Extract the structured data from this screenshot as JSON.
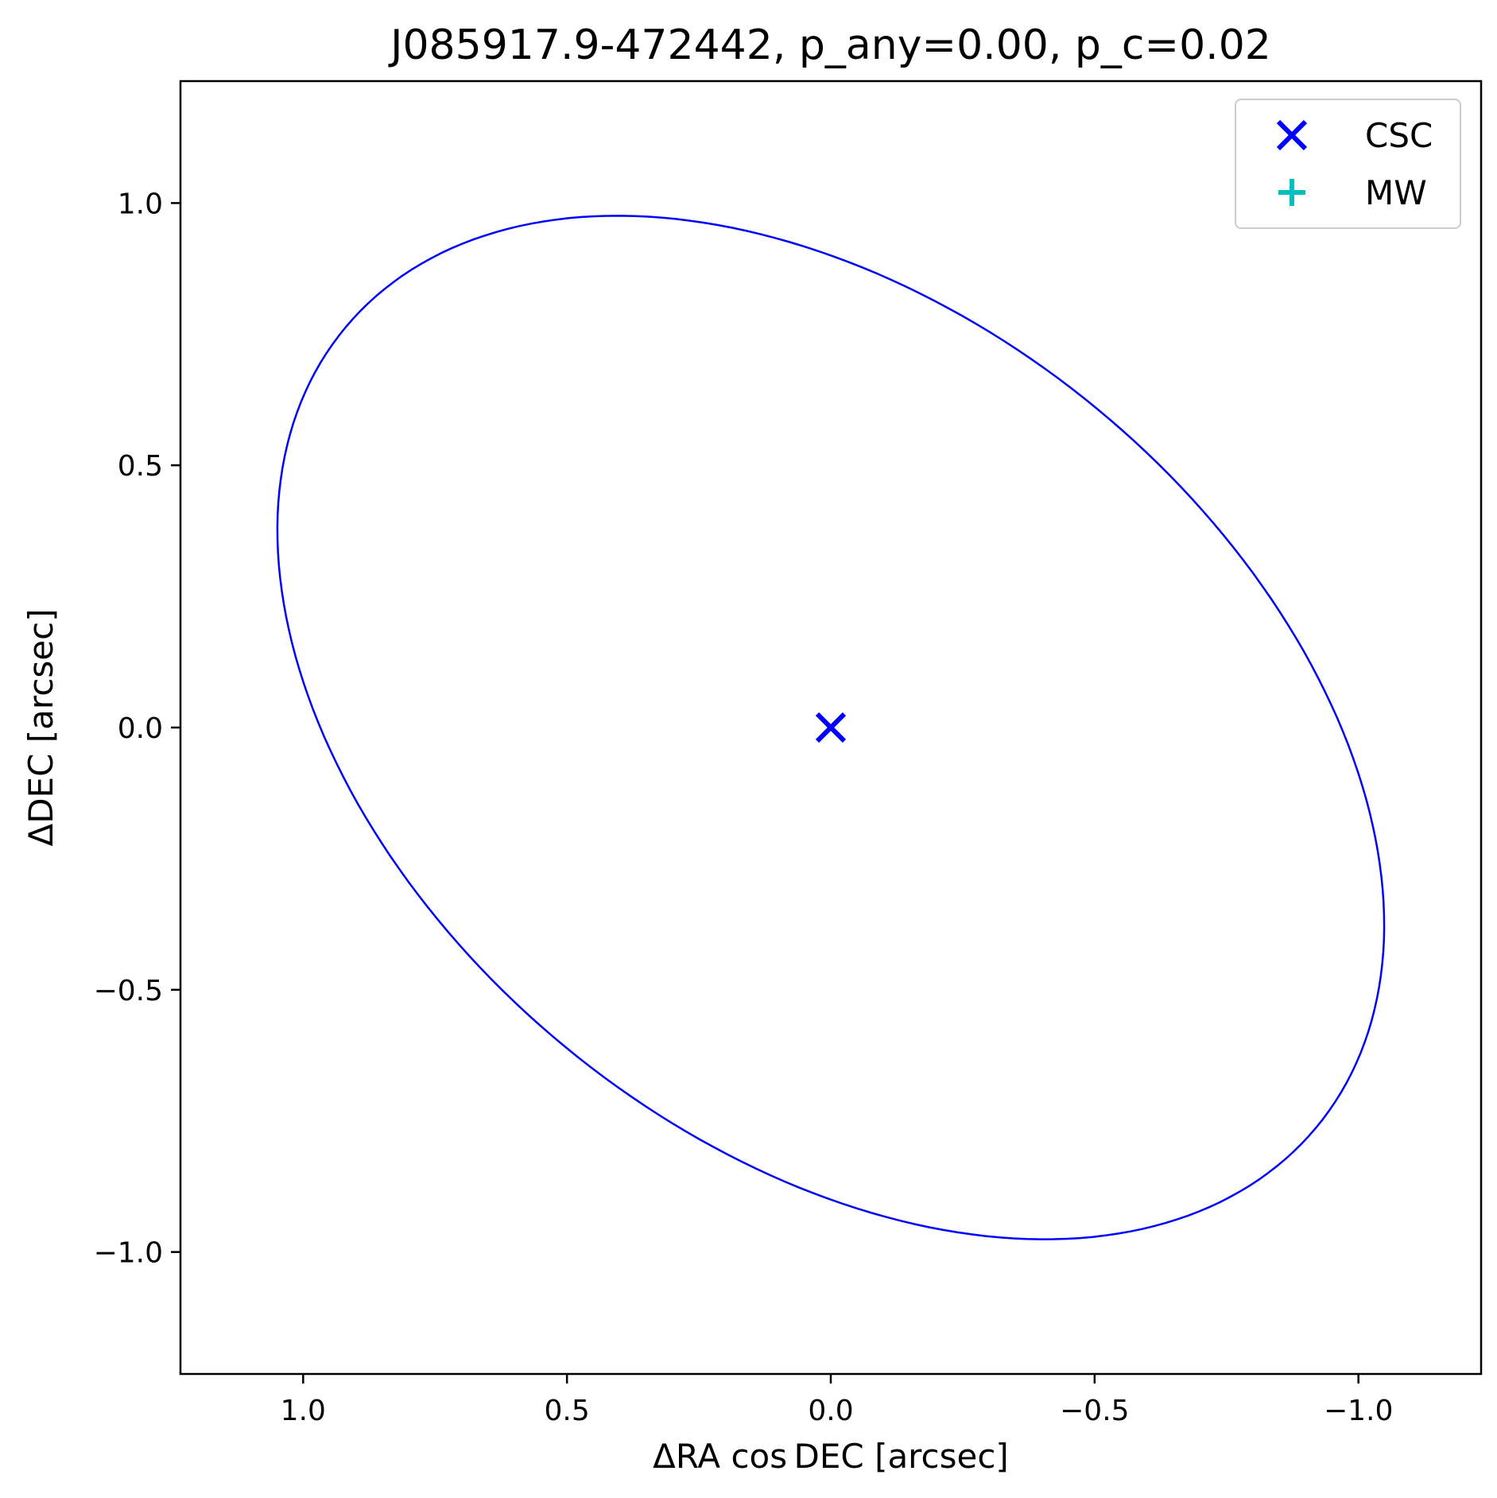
{
  "chart_data": {
    "type": "scatter",
    "title": "J085917.9-472442, p_any=0.00, p_c=0.02",
    "xlabel": "ΔRA cos DEC [arcsec]",
    "ylabel": "ΔDEC [arcsec]",
    "xlim": [
      1.2325,
      -1.2325
    ],
    "ylim": [
      -1.2325,
      1.2325
    ],
    "x_inverted": true,
    "grid": false,
    "legend_position": "top-right",
    "x_ticks": [
      {
        "value": 1.0,
        "label": "1.0"
      },
      {
        "value": 0.5,
        "label": "0.5"
      },
      {
        "value": 0.0,
        "label": "0.0"
      },
      {
        "value": -0.5,
        "label": "−0.5"
      },
      {
        "value": -1.0,
        "label": "−1.0"
      }
    ],
    "y_ticks": [
      {
        "value": 1.0,
        "label": "1.0"
      },
      {
        "value": 0.5,
        "label": "0.5"
      },
      {
        "value": 0.0,
        "label": "0.0"
      },
      {
        "value": -0.5,
        "label": "−0.5"
      },
      {
        "value": -1.0,
        "label": "−1.0"
      }
    ],
    "series": [
      {
        "name": "CSC",
        "marker": "x",
        "color": "#0000ff",
        "points": [
          {
            "x": 0.0,
            "y": 0.0
          }
        ]
      },
      {
        "name": "MW",
        "marker": "+",
        "color": "#00bfbf",
        "points": []
      }
    ],
    "error_ellipse": {
      "center": [
        0.0,
        0.0
      ],
      "semi_major": 1.195,
      "semi_minor": 0.79,
      "angle_deg": 39.7,
      "color": "#0000ff"
    }
  }
}
